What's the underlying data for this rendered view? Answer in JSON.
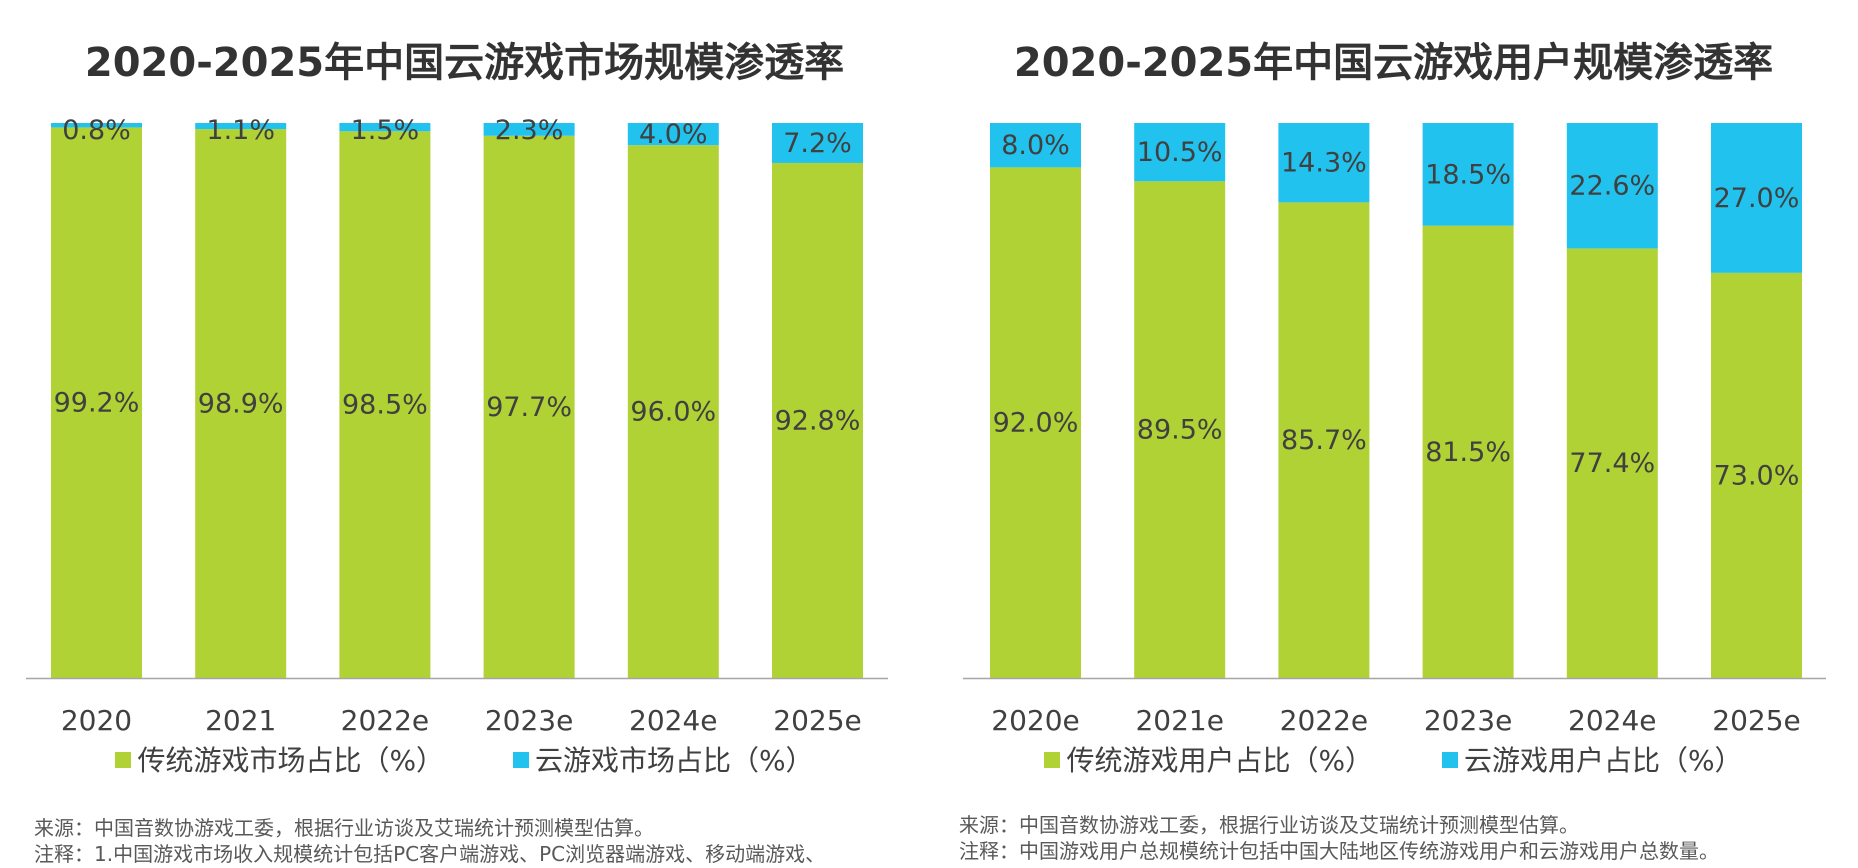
{
  "chart_data": [
    {
      "type": "stacked-bar-100",
      "title": "2020-2025年中国云游戏市场规模渗透率",
      "categories": [
        "2020",
        "2021",
        "2022e",
        "2023e",
        "2024e",
        "2025e"
      ],
      "series": [
        {
          "name": "传统游戏市场占比（%）",
          "color": "#b1d234",
          "values": [
            99.2,
            98.9,
            98.5,
            97.7,
            96.0,
            92.8
          ],
          "labels": [
            "99.2%",
            "98.9%",
            "98.5%",
            "97.7%",
            "96.0%",
            "92.8%"
          ]
        },
        {
          "name": "云游戏市场占比（%）",
          "color": "#22c2ee",
          "values": [
            0.8,
            1.1,
            1.5,
            2.3,
            4.0,
            7.2
          ],
          "labels": [
            "0.8%",
            "1.1%",
            "1.5%",
            "2.3%",
            "4.0%",
            "7.2%"
          ]
        }
      ],
      "ylim": [
        0,
        100
      ],
      "legend": "bottom",
      "notes": [
        "来源：中国音数协游戏工委，根据行业访谈及艾瑞统计预测模型估算。",
        "注释：1.中国游戏市场收入规模统计包括PC客户端游戏、PC浏览器端游戏、移动端游戏、"
      ]
    },
    {
      "type": "stacked-bar-100",
      "title": "2020-2025年中国云游戏用户规模渗透率",
      "categories": [
        "2020e",
        "2021e",
        "2022e",
        "2023e",
        "2024e",
        "2025e"
      ],
      "series": [
        {
          "name": "传统游戏用户占比（%）",
          "color": "#b1d234",
          "values": [
            92.0,
            89.5,
            85.7,
            81.5,
            77.4,
            73.0
          ],
          "labels": [
            "92.0%",
            "89.5%",
            "85.7%",
            "81.5%",
            "77.4%",
            "73.0%"
          ]
        },
        {
          "name": "云游戏用户占比（%）",
          "color": "#22c2ee",
          "values": [
            8.0,
            10.5,
            14.3,
            18.5,
            22.6,
            27.0
          ],
          "labels": [
            "8.0%",
            "10.5%",
            "14.3%",
            "18.5%",
            "22.6%",
            "27.0%"
          ]
        }
      ],
      "ylim": [
        0,
        100
      ],
      "legend": "bottom",
      "notes": [
        "来源：中国音数协游戏工委，根据行业访谈及艾瑞统计预测模型估算。",
        "注释：中国游戏用户总规模统计包括中国大陆地区传统游戏用户和云游戏用户总数量。"
      ]
    }
  ]
}
